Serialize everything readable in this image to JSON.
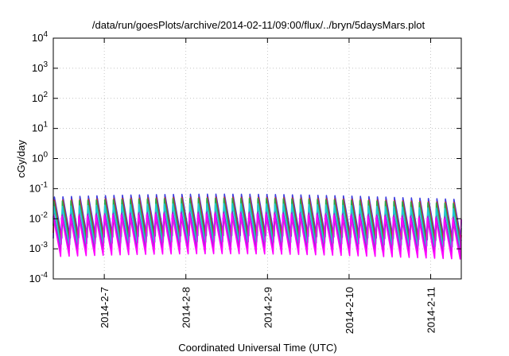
{
  "chart_data": {
    "type": "line",
    "title": "/data/run/goesPlots/archive/2014-02-11/09:00/flux/../bryn/5daysMars.plot",
    "xlabel": "Coordinated Universal Time (UTC)",
    "ylabel": "cGy/day",
    "yscale": "log",
    "ylim": [
      0.0001,
      10000
    ],
    "yticks": [
      {
        "value": 0.0001,
        "base": "10",
        "exp": "-4"
      },
      {
        "value": 0.001,
        "base": "10",
        "exp": "-3"
      },
      {
        "value": 0.01,
        "base": "10",
        "exp": "-2"
      },
      {
        "value": 0.1,
        "base": "10",
        "exp": "-1"
      },
      {
        "value": 1,
        "base": "10",
        "exp": "0"
      },
      {
        "value": 10,
        "base": "10",
        "exp": "1"
      },
      {
        "value": 100,
        "base": "10",
        "exp": "2"
      },
      {
        "value": 1000,
        "base": "10",
        "exp": "3"
      },
      {
        "value": 10000,
        "base": "10",
        "exp": "4"
      }
    ],
    "xlim": [
      "2014-02-06T09:00",
      "2014-02-11T09:00"
    ],
    "xticks": [
      {
        "value": "2014-02-07T00:00",
        "label": "2014-2-7"
      },
      {
        "value": "2014-02-08T00:00",
        "label": "2014-2-8"
      },
      {
        "value": "2014-02-09T00:00",
        "label": "2014-2-9"
      },
      {
        "value": "2014-02-10T00:00",
        "label": "2014-2-10"
      },
      {
        "value": "2014-02-11T00:00",
        "label": "2014-2-11"
      }
    ],
    "grid": true,
    "legend": "none",
    "oscillation_period_hours": 2.5,
    "series": [
      {
        "color": "#3d3ddf",
        "peak": 0.055,
        "trough": 0.0022
      },
      {
        "color": "#d22a2a",
        "peak": 0.048,
        "trough": 0.0016
      },
      {
        "color": "#2aa84a",
        "peak": 0.038,
        "trough": 0.0013
      },
      {
        "color": "#22c8d8",
        "peak": 0.028,
        "trough": 0.001
      },
      {
        "color": "#9a2ad0",
        "peak": 0.016,
        "trough": 0.00075
      },
      {
        "color": "#ff00ff",
        "peak": 0.012,
        "trough": 0.00055
      }
    ]
  }
}
